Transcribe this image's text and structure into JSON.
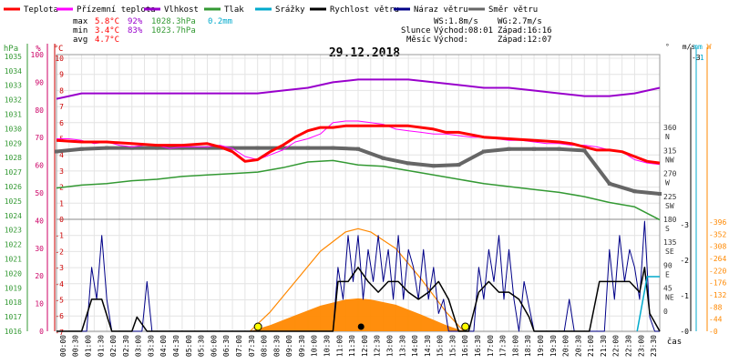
{
  "chart_data": {
    "type": "line",
    "title": "29.12.2018",
    "legend": [
      {
        "label": "Teplota",
        "color": "#ff0000"
      },
      {
        "label": "Přízemní teplota",
        "color": "#ff00ff"
      },
      {
        "label": "Vlhkost",
        "color": "#9900cc"
      },
      {
        "label": "Tlak",
        "color": "#339933"
      },
      {
        "label": "Srážky",
        "color": "#00aacc"
      },
      {
        "label": "Rychlost větru",
        "color": "#000000"
      },
      {
        "label": "Náraz větru",
        "color": "#000088"
      },
      {
        "label": "Směr větru",
        "color": "#666666"
      }
    ],
    "stats": {
      "rows": [
        {
          "label": "max",
          "temp": "5.8°C",
          "hum": "92%",
          "press": "1028.3hPa",
          "rain": "0.2mm"
        },
        {
          "label": "min",
          "temp": "3.4°C",
          "hum": "83%",
          "press": "1023.7hPa"
        },
        {
          "label": "avg",
          "temp": "4.7°C"
        }
      ],
      "wind": {
        "ws": "WS:1.8m/s",
        "wg": "WG:2.7m/s"
      },
      "sun": {
        "label": "Slunce",
        "rise": "Východ:08:01",
        "set": "Západ:16:16"
      },
      "moon": {
        "label": "Měsíc",
        "rise": "Východ:",
        "set": "Západ:12:07"
      }
    },
    "axes": {
      "top_left_units": [
        "hPa",
        "%",
        "°C"
      ],
      "top_right_units": [
        "°"
      ],
      "bottom_right_units": [
        "m/s",
        "mm",
        "W"
      ],
      "pressure_ticks": [
        1035,
        1034,
        1033,
        1032,
        1031,
        1030,
        1029,
        1028,
        1027,
        1026,
        1025,
        1024,
        1023,
        1022,
        1021,
        1020,
        1019,
        1018,
        1017,
        1016
      ],
      "humidity_ticks": [
        100,
        90,
        80,
        70,
        60,
        50,
        40,
        30,
        20,
        10,
        0
      ],
      "temp_ticks": [
        10,
        9,
        8,
        7,
        6,
        5,
        4,
        3,
        2,
        1,
        0,
        -1,
        -2,
        -3,
        -4,
        -5,
        -6,
        -7
      ],
      "direction_ticks": [
        {
          "deg": 360,
          "dir": "N"
        },
        {
          "deg": 315,
          "dir": "NW"
        },
        {
          "deg": 270,
          "dir": "W"
        },
        {
          "deg": 225,
          "dir": "SW"
        },
        {
          "deg": 180,
          "dir": "S"
        },
        {
          "deg": 135,
          "dir": "SE"
        },
        {
          "deg": 90,
          "dir": "E"
        },
        {
          "deg": 45,
          "dir": "NE"
        },
        {
          "deg": 0,
          "dir": ""
        }
      ],
      "wind_speed_ticks": [
        0,
        1,
        2,
        3
      ],
      "rain_ticks": [
        1
      ],
      "solar_ticks": [
        396,
        352,
        308,
        264,
        220,
        176,
        132,
        88,
        44,
        0
      ],
      "x_ticks": [
        "00:00",
        "00:30",
        "01:00",
        "01:30",
        "02:00",
        "02:30",
        "03:00",
        "03:30",
        "04:00",
        "04:30",
        "05:00",
        "05:30",
        "06:00",
        "06:30",
        "07:00",
        "07:30",
        "08:00",
        "08:30",
        "09:00",
        "09:30",
        "10:00",
        "10:30",
        "11:00",
        "11:30",
        "12:00",
        "12:30",
        "13:00",
        "13:30",
        "14:00",
        "14:30",
        "15:00",
        "15:30",
        "16:00",
        "16:30",
        "17:00",
        "17:30",
        "18:00",
        "18:30",
        "19:00",
        "19:30",
        "20:00",
        "20:30",
        "21:00",
        "21:30",
        "22:00",
        "22:30",
        "23:00",
        "23:30"
      ],
      "x_label": "čas"
    },
    "series": {
      "temperature": {
        "x": [
          0,
          1,
          2,
          3,
          4,
          5,
          6,
          6.5,
          7,
          7.5,
          8,
          8.5,
          9,
          9.5,
          10,
          10.5,
          11,
          11.5,
          12,
          13,
          14,
          15,
          15.5,
          16,
          17,
          18,
          19,
          20,
          20.5,
          21,
          21.5,
          22,
          22.5,
          23,
          23.5,
          24
        ],
        "y": [
          4.9,
          4.8,
          4.8,
          4.7,
          4.6,
          4.6,
          4.7,
          4.5,
          4.2,
          3.6,
          3.7,
          4.2,
          4.6,
          5.1,
          5.5,
          5.7,
          5.7,
          5.8,
          5.8,
          5.8,
          5.8,
          5.6,
          5.4,
          5.4,
          5.1,
          5.0,
          4.9,
          4.8,
          4.7,
          4.5,
          4.3,
          4.3,
          4.2,
          3.9,
          3.6,
          3.5
        ]
      },
      "ground_temperature": {
        "x": [
          0,
          0.5,
          1,
          1.5,
          2,
          2.5,
          3,
          3.5,
          4,
          4.5,
          5,
          5.5,
          6,
          6.5,
          7,
          7.5,
          8,
          8.5,
          9,
          9.5,
          10,
          10.5,
          11,
          11.5,
          12,
          12.5,
          13,
          13.5,
          14,
          14.5,
          15,
          15.5,
          16,
          16.5,
          17,
          17.5,
          18,
          18.5,
          19,
          19.5,
          20,
          20.5,
          21,
          21.5,
          22,
          22.5,
          23,
          23.5,
          24
        ],
        "y": [
          5.0,
          5.0,
          4.9,
          4.7,
          4.8,
          4.6,
          4.5,
          4.6,
          4.6,
          4.4,
          4.5,
          4.5,
          4.5,
          4.6,
          4.4,
          3.9,
          3.7,
          4.0,
          4.3,
          4.8,
          5.0,
          5.3,
          6.0,
          6.1,
          6.1,
          6.0,
          5.9,
          5.6,
          5.5,
          5.4,
          5.3,
          5.3,
          5.2,
          5.1,
          5.1,
          5.0,
          4.9,
          4.9,
          4.8,
          4.7,
          4.7,
          4.6,
          4.6,
          4.5,
          4.3,
          4.2,
          3.7,
          3.5,
          3.4
        ]
      },
      "humidity": {
        "x": [
          0,
          1,
          2,
          3,
          4,
          5,
          6,
          7,
          8,
          9,
          10,
          11,
          12,
          13,
          14,
          15,
          16,
          17,
          18,
          19,
          20,
          21,
          22,
          23,
          24
        ],
        "y": [
          84,
          86,
          86,
          86,
          86,
          86,
          86,
          86,
          86,
          87,
          88,
          90,
          91,
          91,
          91,
          90,
          89,
          88,
          88,
          87,
          86,
          85,
          85,
          86,
          88
        ]
      },
      "pressure": {
        "x": [
          0,
          1,
          2,
          3,
          4,
          5,
          6,
          7,
          8,
          9,
          10,
          11,
          12,
          13,
          14,
          15,
          16,
          17,
          18,
          19,
          20,
          21,
          22,
          23,
          24
        ],
        "y": [
          1025.9,
          1026.1,
          1026.2,
          1026.4,
          1026.5,
          1026.7,
          1026.8,
          1026.9,
          1027.0,
          1027.3,
          1027.7,
          1027.8,
          1027.5,
          1027.4,
          1027.1,
          1026.8,
          1026.5,
          1026.2,
          1026.0,
          1025.8,
          1025.6,
          1025.3,
          1024.9,
          1024.6,
          1023.7
        ]
      },
      "wind_direction": {
        "x": [
          0,
          1,
          2,
          3,
          4,
          5,
          6,
          7,
          8,
          9,
          10,
          11,
          12,
          13,
          14,
          15,
          16,
          17,
          18,
          19,
          20,
          21,
          22,
          23,
          24
        ],
        "y": [
          313,
          318,
          320,
          320,
          320,
          320,
          320,
          320,
          320,
          320,
          320,
          320,
          318,
          300,
          290,
          285,
          287,
          313,
          318,
          318,
          318,
          315,
          250,
          235,
          230
        ]
      },
      "wind_speed": {
        "x": [
          0,
          1,
          1.4,
          1.8,
          2.2,
          3,
          3.2,
          3.6,
          4,
          4.4,
          5,
          5.6,
          6,
          6.4,
          7,
          7.6,
          8,
          9,
          10,
          11,
          11.2,
          11.6,
          12,
          12.4,
          12.8,
          13.2,
          13.6,
          14,
          14.4,
          14.8,
          15.2,
          15.6,
          16,
          16.4,
          16.8,
          17.2,
          17.6,
          18,
          18.4,
          18.8,
          19,
          19.4,
          20,
          20.4,
          20.8,
          21.2,
          21.6,
          22,
          22.4,
          22.8,
          23.2,
          23.4,
          23.6,
          24
        ],
        "y": [
          0,
          0,
          0.9,
          0.9,
          0,
          0,
          0.4,
          0,
          0,
          0,
          0,
          0,
          0,
          0,
          0,
          0,
          0,
          0,
          0,
          0,
          1.4,
          1.4,
          1.8,
          1.4,
          1.1,
          1.4,
          1.4,
          1.1,
          0.9,
          1.1,
          1.4,
          0.9,
          0,
          0,
          1.1,
          1.4,
          1.1,
          1.1,
          0.9,
          0.4,
          0,
          0,
          0,
          0,
          0,
          0,
          1.4,
          1.4,
          1.4,
          1.4,
          1.1,
          1.8,
          0.5,
          0
        ]
      },
      "wind_gust": {
        "x": [
          0,
          1.2,
          1.4,
          1.6,
          1.8,
          2,
          2.2,
          3.4,
          3.6,
          3.8,
          4,
          11,
          11.2,
          11.4,
          11.6,
          11.8,
          12,
          12.2,
          12.4,
          12.6,
          12.8,
          13,
          13.2,
          13.4,
          13.6,
          13.8,
          14,
          14.2,
          14.4,
          14.6,
          14.8,
          15,
          15.2,
          15.4,
          15.6,
          16,
          16.6,
          16.8,
          17,
          17.2,
          17.4,
          17.6,
          17.8,
          18,
          18.2,
          18.4,
          18.6,
          19,
          20.2,
          20.4,
          20.6,
          21.8,
          22,
          22.2,
          22.4,
          22.6,
          22.8,
          23,
          23.2,
          23.4,
          23.6,
          23.8,
          24
        ],
        "y": [
          0,
          0,
          1.8,
          0.9,
          2.7,
          0.9,
          0,
          0,
          1.4,
          0,
          0,
          0,
          1.8,
          0.9,
          2.7,
          1.4,
          2.7,
          0.9,
          2.3,
          1.4,
          2.7,
          1.4,
          2.3,
          0.9,
          2.7,
          0.9,
          2.3,
          1.8,
          0.9,
          2.3,
          0.9,
          1.8,
          0.5,
          0.9,
          0,
          0,
          0,
          1.8,
          0.9,
          2.3,
          1.4,
          2.7,
          0.9,
          2.3,
          0.9,
          0,
          1.4,
          0,
          0,
          0.9,
          0,
          0,
          2.3,
          0.9,
          2.7,
          1.4,
          2.3,
          1.8,
          0.9,
          3.1,
          0.4,
          0,
          0
        ]
      },
      "solar_radiation": {
        "x": [
          7.7,
          8.5,
          9.5,
          10.5,
          11.5,
          12,
          12.5,
          13.5,
          14.5,
          15.5,
          16.2
        ],
        "y": [
          0,
          70,
          180,
          290,
          360,
          372,
          360,
          300,
          190,
          70,
          0
        ]
      },
      "rain": {
        "x": [
          23.1,
          23.5,
          24
        ],
        "y": [
          0,
          0.2,
          0.2
        ]
      }
    },
    "markers": {
      "sunrise": "08:01",
      "sunset": "16:16",
      "moonset": "12:07"
    }
  }
}
